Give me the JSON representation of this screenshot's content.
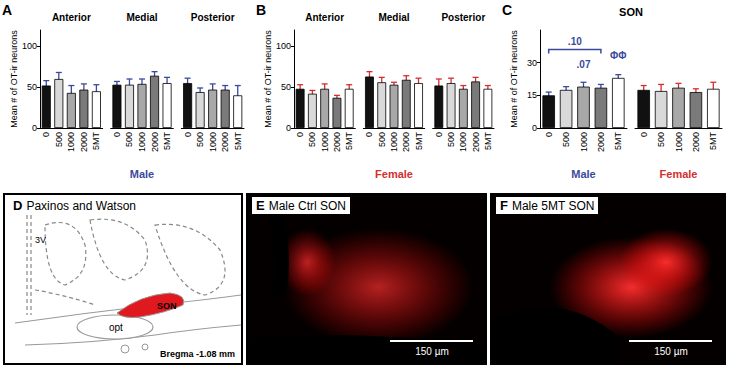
{
  "chart_data": [
    {
      "type": "bar",
      "panel_label": "A",
      "y_label": "Mean # of OT-ir neurons",
      "x_label": "Male",
      "label_color": "#3b4a9c",
      "categories": [
        "0",
        "500",
        "1000",
        "2000",
        "5MT"
      ],
      "colors": [
        "#111111",
        "#d9d9d9",
        "#a8a8a8",
        "#7a7a7a",
        "#ffffff"
      ],
      "ylim": [
        0,
        120
      ],
      "yticks": [
        0,
        50,
        100
      ],
      "groups": [
        {
          "title": "Anterior",
          "values": [
            52,
            60,
            43,
            47,
            45
          ],
          "errors": [
            6,
            8,
            9,
            7,
            8
          ],
          "error_color": "#3b4a9c"
        },
        {
          "title": "Medial",
          "values": [
            53,
            53,
            54,
            64,
            55
          ],
          "errors": [
            4,
            7,
            6,
            5,
            7
          ],
          "error_color": "#3b4a9c"
        },
        {
          "title": "Posterior",
          "values": [
            55,
            44,
            47,
            47,
            40
          ],
          "errors": [
            6,
            5,
            7,
            5,
            12
          ],
          "error_color": "#3b4a9c"
        }
      ]
    },
    {
      "type": "bar",
      "panel_label": "B",
      "y_label": "Mean # of OT-ir neurons",
      "x_label": "Female",
      "label_color": "#d32f2f",
      "categories": [
        "0",
        "500",
        "1000",
        "2000",
        "5MT"
      ],
      "colors": [
        "#111111",
        "#d9d9d9",
        "#a8a8a8",
        "#7a7a7a",
        "#ffffff"
      ],
      "ylim": [
        0,
        120
      ],
      "yticks": [
        0,
        50,
        100
      ],
      "groups": [
        {
          "title": "Anterior",
          "values": [
            48,
            42,
            48,
            37,
            48
          ],
          "errors": [
            5,
            4,
            6,
            3,
            5
          ],
          "error_color": "#d32f2f"
        },
        {
          "title": "Medial",
          "values": [
            63,
            56,
            53,
            59,
            55
          ],
          "errors": [
            6,
            6,
            3,
            5,
            6
          ],
          "error_color": "#d32f2f"
        },
        {
          "title": "Posterior",
          "values": [
            52,
            55,
            48,
            57,
            48
          ],
          "errors": [
            8,
            6,
            4,
            5,
            4
          ],
          "error_color": "#d32f2f"
        }
      ]
    },
    {
      "type": "bar",
      "panel_label": "C",
      "title": "SON",
      "y_label": "Mean # of OT-ir neurons",
      "categories": [
        "0",
        "500",
        "1000",
        "2000",
        "5MT"
      ],
      "colors": [
        "#111111",
        "#d9d9d9",
        "#a8a8a8",
        "#7a7a7a",
        "#ffffff"
      ],
      "ylim": [
        0,
        45
      ],
      "yticks": [
        0,
        15,
        30
      ],
      "groups": [
        {
          "label": "Male",
          "label_color": "#3b4a9c",
          "values": [
            15,
            17.5,
            19,
            18.5,
            23
          ],
          "errors": [
            1.5,
            1.5,
            2,
            1.5,
            1.5
          ],
          "error_color": "#3b4a9c",
          "annotations": [
            {
              "text": ".10",
              "from": "0",
              "to": "2000",
              "y": 36,
              "color": "#3b4a9c"
            },
            {
              "text": ".07",
              "at": "1000",
              "y": 27,
              "color": "#3b4a9c"
            },
            {
              "text": "ΦΦ",
              "at": "5MT",
              "y": 31,
              "color": "#3b4a9c"
            }
          ]
        },
        {
          "label": "Female",
          "label_color": "#d32f2f",
          "values": [
            17.5,
            17,
            18.5,
            16.5,
            18
          ],
          "errors": [
            2,
            3,
            2,
            1.5,
            3
          ],
          "error_color": "#d32f2f"
        }
      ]
    }
  ],
  "panels": [
    {
      "label": "D",
      "title": "Paxinos and Watson",
      "annotations": [
        "3V",
        "SON",
        "opt",
        "Bregma -1.08 mm"
      ]
    },
    {
      "label": "E",
      "title": "Male Ctrl SON",
      "scale_bar": "150 µm"
    },
    {
      "label": "F",
      "title": "Male 5MT SON",
      "scale_bar": "150 µm"
    }
  ]
}
